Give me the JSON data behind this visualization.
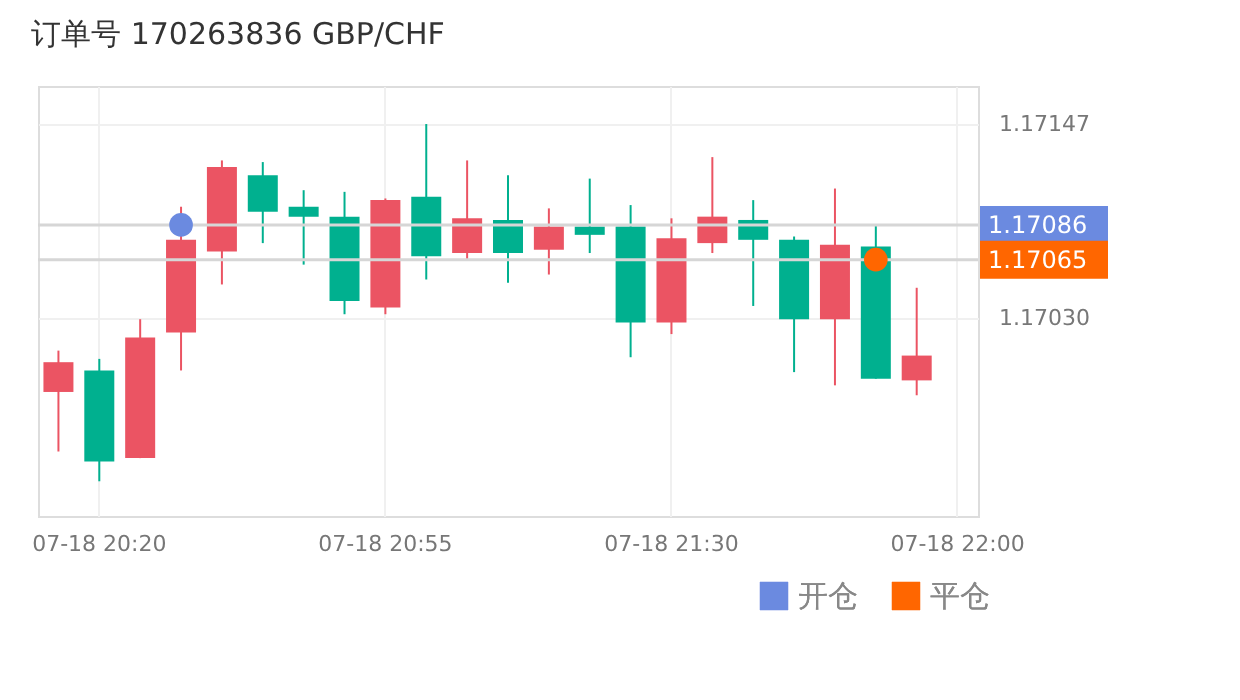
{
  "chart_data": {
    "type": "candlestick",
    "title": "订单号 170263836    GBP/CHF",
    "categories": [
      null,
      "07-18 20:20",
      null,
      null,
      null,
      null,
      null,
      null,
      "07-18 20:55",
      null,
      null,
      null,
      null,
      null,
      null,
      "07-18 21:30",
      null,
      null,
      null,
      null,
      null,
      null,
      "07-18 22:00"
    ],
    "ohlc": [
      [
        1.16985,
        1.1701,
        1.16949,
        1.17003
      ],
      [
        1.16998,
        1.17005,
        1.16931,
        1.16943
      ],
      [
        1.16945,
        1.17029,
        1.16945,
        1.17018
      ],
      [
        1.17021,
        1.17097,
        1.16998,
        1.17077
      ],
      [
        1.1707,
        1.17125,
        1.1705,
        1.17121
      ],
      [
        1.17116,
        1.17124,
        1.17075,
        1.17094
      ],
      [
        1.17097,
        1.17107,
        1.17062,
        1.17091
      ],
      [
        1.17091,
        1.17106,
        1.17032,
        1.1704
      ],
      [
        1.17036,
        1.17102,
        1.17032,
        1.17101
      ],
      [
        1.17103,
        1.17147,
        1.17053,
        1.17067
      ],
      [
        1.17069,
        1.17125,
        1.17065,
        1.1709
      ],
      [
        1.17089,
        1.17116,
        1.17051,
        1.17069
      ],
      [
        1.17071,
        1.17096,
        1.17056,
        1.17085
      ],
      [
        1.17085,
        1.17114,
        1.17069,
        1.1708
      ],
      [
        1.17085,
        1.17098,
        1.17006,
        1.17027
      ],
      [
        1.17027,
        1.1709,
        1.1702,
        1.17078
      ],
      [
        1.17075,
        1.17127,
        1.17069,
        1.17091
      ],
      [
        1.17089,
        1.17101,
        1.17037,
        1.17077
      ],
      [
        1.17077,
        1.17079,
        1.16997,
        1.17029
      ],
      [
        1.17029,
        1.17108,
        1.16989,
        1.17074
      ],
      [
        1.17073,
        1.17086,
        1.16993,
        1.16993
      ],
      [
        1.16992,
        1.17048,
        1.16983,
        1.17007
      ],
      null
    ],
    "colors": [
      "#eb5463",
      "#00b08f",
      "#eb5463",
      "#eb5463",
      "#eb5463",
      "#00b08f",
      "#00b08f",
      "#00b08f",
      "#eb5463",
      "#00b08f",
      "#eb5463",
      "#00b08f",
      "#eb5463",
      "#00b08f",
      "#00b08f",
      "#eb5463",
      "#eb5463",
      "#00b08f",
      "#00b08f",
      "#eb5463",
      "#00b08f",
      "#eb5463",
      null
    ],
    "series": [
      {
        "name": "开仓",
        "type": "scatter",
        "color": "#6b8ae0",
        "values": [
          null,
          null,
          null,
          1.17086,
          null,
          null,
          null,
          null,
          null,
          null,
          null,
          null,
          null,
          null,
          null,
          null,
          null,
          null,
          null,
          null,
          null,
          null,
          null
        ]
      },
      {
        "name": "平仓",
        "type": "scatter",
        "color": "#ff6600",
        "values": [
          null,
          null,
          null,
          null,
          null,
          null,
          null,
          null,
          null,
          null,
          null,
          null,
          null,
          null,
          null,
          null,
          null,
          null,
          null,
          null,
          1.17065,
          null,
          null
        ]
      }
    ],
    "ref_lines": [
      {
        "axis": "y",
        "value": 1.17086,
        "label": "1.17086",
        "color": "#d6d6d6"
      },
      {
        "axis": "y",
        "value": 1.17065,
        "label": "1.17065",
        "color": "#d6d6d6"
      }
    ],
    "ylim": [
      1.1691,
      1.1717
    ],
    "yticks": [
      1.17147,
      {
        "value": 1.1703,
        "label": "1.17030"
      }
    ],
    "grid": true,
    "legend": "bottom right",
    "marker": "circle"
  }
}
